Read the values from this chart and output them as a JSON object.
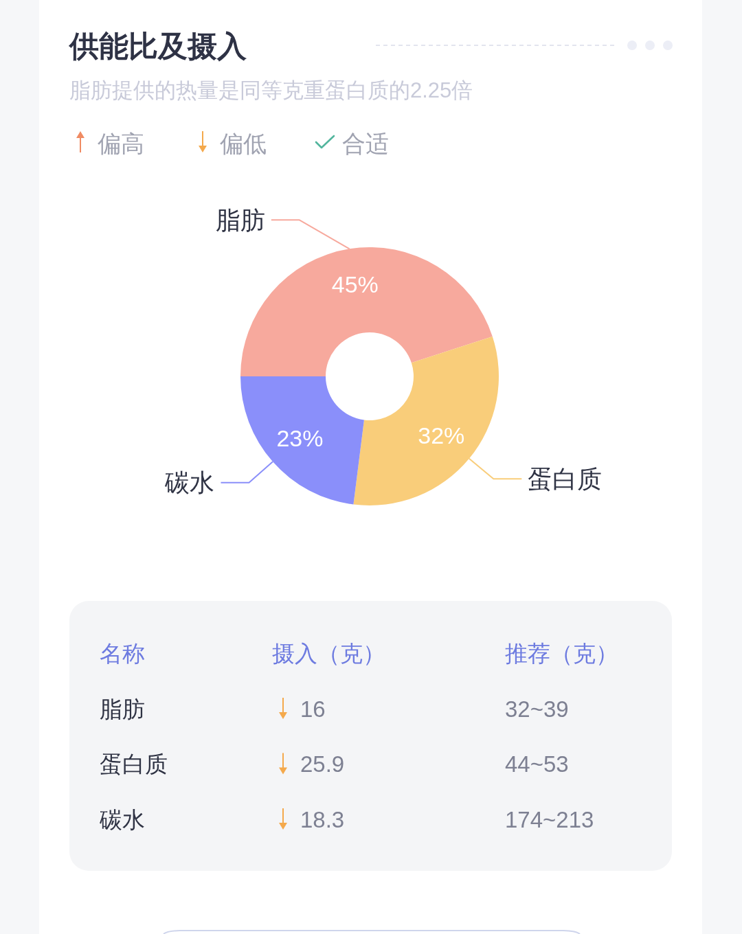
{
  "chart_data": [
    {
      "type": "donut",
      "title": "供能比及摄入",
      "subtitle": "脂肪提供的热量是同等克重蛋白质的2.25倍",
      "categories": [
        "脂肪",
        "蛋白质",
        "碳水"
      ],
      "values": [
        45,
        32,
        23
      ],
      "colors": [
        "#f7a99d",
        "#f9cd7a",
        "#8a8ffa"
      ],
      "value_labels": [
        "45%",
        "32%",
        "23%"
      ]
    },
    {
      "type": "other",
      "legend": "top left",
      "categories": [
        "脂肪",
        "蛋白质",
        "碳水"
      ],
      "series": [
        {
          "name": "偏高",
          "color": "#f08b63",
          "values": [
            null,
            null,
            null
          ]
        },
        {
          "name": "偏低",
          "color": "#f4a94c",
          "values": [
            16,
            25.9,
            18.3
          ]
        },
        {
          "name": "合适",
          "color": "#52b59d",
          "values": [
            null,
            null,
            null
          ]
        }
      ],
      "data_labels": true,
      "annotations": [
        "名称",
        "摄入（克）",
        "推荐（克）"
      ],
      "value_labels": [
        "32~39",
        "44~53",
        "174~213"
      ]
    }
  ]
}
